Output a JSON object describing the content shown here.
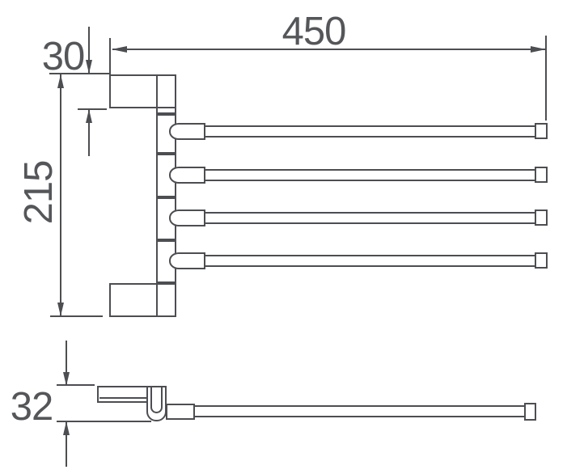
{
  "front_view": {
    "dim_width_label": "450",
    "dim_bracket_height_label": "30",
    "dim_total_height_label": "215"
  },
  "side_view": {
    "dim_depth_label": "32"
  },
  "colors": {
    "line": "#4c4e52",
    "text": "#545659",
    "background": "#ffffff"
  }
}
